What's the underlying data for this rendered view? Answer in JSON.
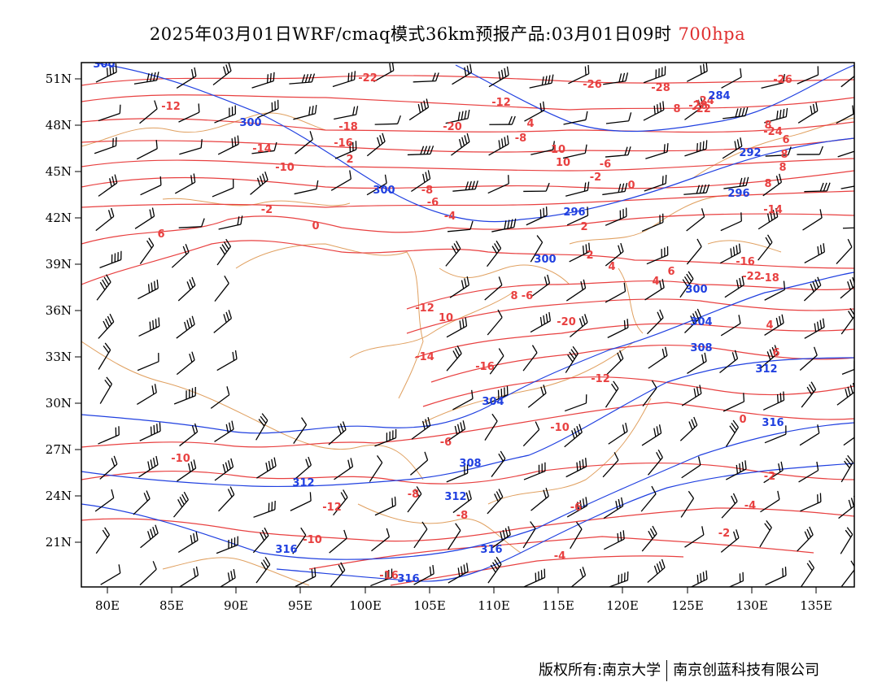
{
  "title": {
    "main": "2025年03月01日WRF/cmaq模式36km预报产品:03月01日09时",
    "level": "700hpa"
  },
  "colors": {
    "temperature": "#e84040",
    "geopotential": "#2040e0",
    "border": "#e0a060",
    "wind": "#000000",
    "frame": "#000000"
  },
  "axes": {
    "x_ticks": [
      "80E",
      "85E",
      "90E",
      "95E",
      "100E",
      "105E",
      "110E",
      "115E",
      "120E",
      "125E",
      "130E",
      "135E"
    ],
    "y_ticks": [
      "51N",
      "48N",
      "45N",
      "42N",
      "39N",
      "36N",
      "33N",
      "30N",
      "27N",
      "24N",
      "21N"
    ]
  },
  "temperature_labels": [
    "-22",
    "-26",
    "-28",
    "-26",
    "-24",
    "-22",
    "-20",
    "-18",
    "-16",
    "-14",
    "-12",
    "-10",
    "-8",
    "-6",
    "-4",
    "-2",
    "0",
    "2",
    "4",
    "6",
    "8",
    "10",
    "-12",
    "-14",
    "-16",
    "-20",
    "-12",
    "-10",
    "-8",
    "-6",
    "-8",
    "-6",
    "-4",
    "-2",
    "0",
    "-2",
    "-4",
    "2",
    "4",
    "4",
    "6",
    "6",
    "8",
    "8",
    "8",
    "8",
    "8",
    "6",
    "4",
    "10",
    "10",
    "-6",
    "-2",
    "0",
    "2",
    "-8",
    "-12",
    "-10",
    "-14",
    "-16",
    "-18",
    "-22",
    "-24",
    "-28",
    "-16",
    "-12",
    "-10",
    "-6",
    "-8"
  ],
  "height_labels": [
    "300",
    "300",
    "300",
    "296",
    "300",
    "300",
    "304",
    "308",
    "312",
    "316",
    "304",
    "308",
    "312",
    "316",
    "312",
    "316",
    "316",
    "292",
    "296",
    "284"
  ],
  "footer": {
    "left": "版权所有:南京大学",
    "right": "南京创蓝科技有限公司"
  }
}
